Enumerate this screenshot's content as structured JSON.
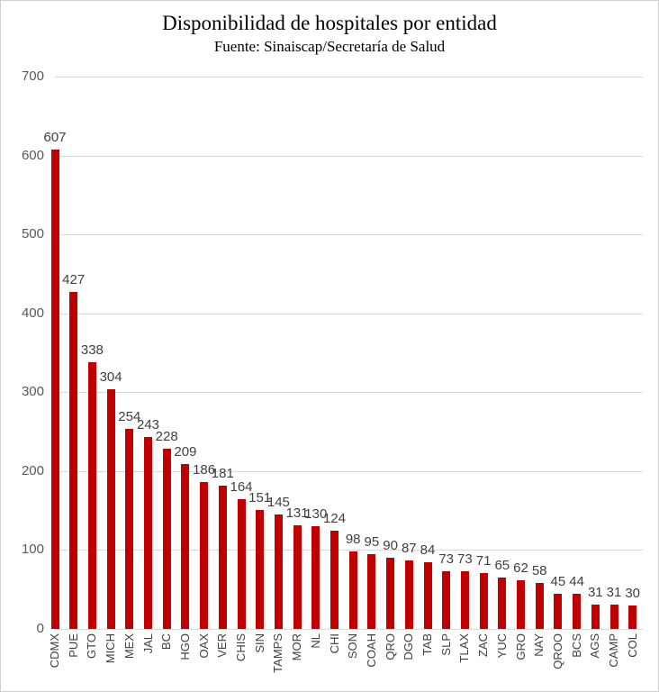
{
  "title": "Disponibilidad de hospitales por entidad",
  "subtitle": "Fuente: Sinaiscap/Secretaría de Salud",
  "colors": {
    "bar": "#c00000",
    "gridline": "#d9d9d9",
    "value_label": "#404040",
    "axis_label": "#595959",
    "background": "#ffffff",
    "frame_border": "#cfcfcf"
  },
  "chart_data": {
    "type": "bar",
    "title": "Disponibilidad de hospitales por entidad",
    "subtitle": "Fuente: Sinaiscap/Secretaría de Salud",
    "categories": [
      "CDMX",
      "PUE",
      "GTO",
      "MICH",
      "MEX",
      "JAL",
      "BC",
      "HGO",
      "OAX",
      "VER",
      "CHIS",
      "SIN",
      "TAMPS",
      "MOR",
      "NL",
      "CHI",
      "SON",
      "COAH",
      "QRO",
      "DGO",
      "TAB",
      "SLP",
      "TLAX",
      "ZAC",
      "YUC",
      "GRO",
      "NAY",
      "QROO",
      "BCS",
      "AGS",
      "CAMP",
      "COL"
    ],
    "values": [
      607,
      427,
      338,
      304,
      254,
      243,
      228,
      209,
      186,
      181,
      164,
      151,
      145,
      131,
      130,
      124,
      98,
      95,
      90,
      87,
      84,
      73,
      73,
      71,
      65,
      62,
      58,
      45,
      44,
      31,
      31,
      30
    ],
    "xlabel": "",
    "ylabel": "",
    "ylim": [
      0,
      700
    ],
    "yticks": [
      0,
      100,
      200,
      300,
      400,
      500,
      600,
      700
    ],
    "grid": true,
    "legend": false,
    "bar_color": "#c00000",
    "value_labels_shown": true
  }
}
